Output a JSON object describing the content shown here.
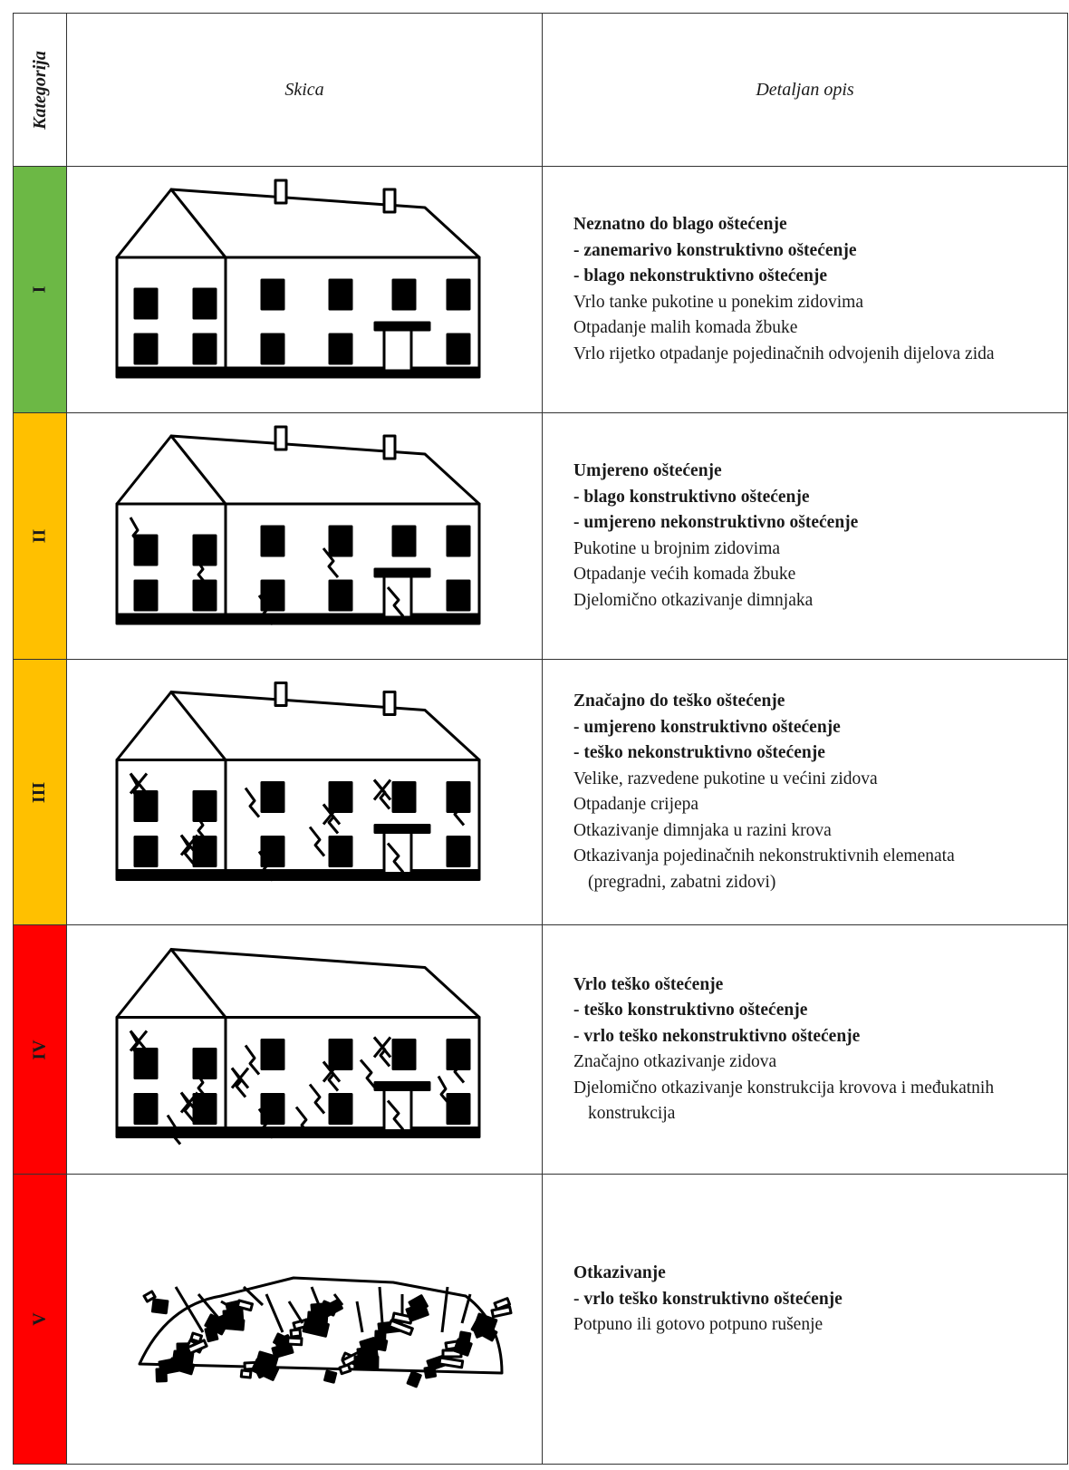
{
  "header": {
    "category": "Kategorija",
    "sketch": "Skica",
    "description": "Detaljan opis"
  },
  "rows": [
    {
      "category": "I",
      "color": "#6cb845",
      "lines": [
        {
          "text": "Neznatno do blago oštećenje",
          "bold": true
        },
        {
          "text": "- zanemarivo konstruktivno oštećenje",
          "bold": true
        },
        {
          "text": "- blago nekonstruktivno oštećenje",
          "bold": true
        },
        {
          "text": "Vrlo tanke pukotine u ponekim zidovima",
          "bold": false
        },
        {
          "text": "Otpadanje malih komada žbuke",
          "bold": false
        },
        {
          "text": "Vrlo rijetko otpadanje pojedinačnih odvojenih dijelova zida",
          "bold": false
        }
      ]
    },
    {
      "category": "II",
      "color": "#ffc000",
      "lines": [
        {
          "text": "Umjereno oštećenje",
          "bold": true
        },
        {
          "text": "- blago konstruktivno oštećenje",
          "bold": true
        },
        {
          "text": "- umjereno nekonstruktivno oštećenje",
          "bold": true
        },
        {
          "text": "Pukotine u brojnim zidovima",
          "bold": false
        },
        {
          "text": "Otpadanje većih komada žbuke",
          "bold": false
        },
        {
          "text": "Djelomično otkazivanje dimnjaka",
          "bold": false
        }
      ]
    },
    {
      "category": "III",
      "color": "#ffc000",
      "lines": [
        {
          "text": "Značajno do teško oštećenje",
          "bold": true
        },
        {
          "text": "- umjereno konstruktivno oštećenje",
          "bold": true
        },
        {
          "text": "- teško nekonstruktivno oštećenje",
          "bold": true
        },
        {
          "text": "Velike, razvedene pukotine u većini zidova",
          "bold": false
        },
        {
          "text": "Otpadanje crijepa",
          "bold": false
        },
        {
          "text": "Otkazivanje dimnjaka u razini krova",
          "bold": false
        },
        {
          "text": "Otkazivanja pojedinačnih nekonstruktivnih elemenata (pregradni, zabatni zidovi)",
          "bold": false
        }
      ]
    },
    {
      "category": "IV",
      "color": "#ff0000",
      "lines": [
        {
          "text": "Vrlo teško oštećenje",
          "bold": true
        },
        {
          "text": "- teško konstruktivno oštećenje",
          "bold": true
        },
        {
          "text": "- vrlo teško nekonstruktivno oštećenje",
          "bold": true
        },
        {
          "text": "Značajno otkazivanje zidova",
          "bold": false
        },
        {
          "text": "Djelomično otkazivanje konstrukcija krovova i međukatnih konstrukcija",
          "bold": false
        }
      ]
    },
    {
      "category": "V",
      "color": "#ff0000",
      "lines": [
        {
          "text": "Otkazivanje",
          "bold": true
        },
        {
          "text": "- vrlo teško konstruktivno oštećenje",
          "bold": true
        },
        {
          "text": "Potpuno ili gotovo potpuno rušenje",
          "bold": false
        }
      ]
    }
  ]
}
